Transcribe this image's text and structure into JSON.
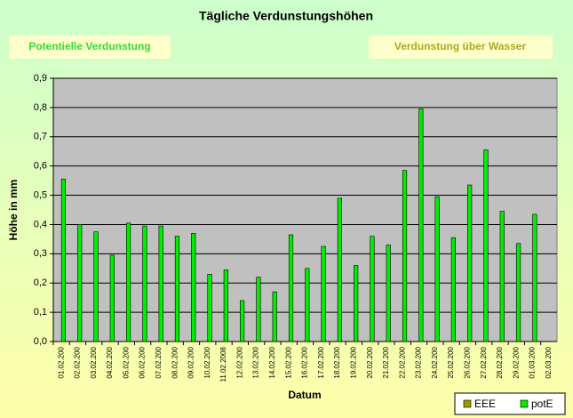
{
  "chart_data": {
    "type": "bar",
    "title": "Tägliche Verdunstungshöhen",
    "annotations": [
      "Potentielle Verdunstung",
      "Verdunstung über Wasser"
    ],
    "ylabel": "Höhe in mm",
    "xlabel": "Datum",
    "categories": [
      "01.02.200",
      "02.02.200",
      "03.02.200",
      "04.02.200",
      "05.02.200",
      "06.02.200",
      "07.02.200",
      "08.02.200",
      "09.02.200",
      "10.02.200",
      "11.02.2008",
      "12.02.200",
      "13.02.200",
      "14.02.200",
      "15.02.200",
      "16.02.200",
      "17.02.200",
      "18.02.200",
      "19.02.200",
      "20.02.200",
      "21.02.200",
      "22.02.200",
      "23.02.200",
      "24.02.200",
      "25.02.200",
      "26.02.200",
      "27.02.200",
      "28.02.200",
      "29.02.200",
      "01.03.200",
      "02.03.200"
    ],
    "series": [
      {
        "name": "EEE",
        "color": "#999900",
        "values": [
          null,
          null,
          null,
          null,
          null,
          null,
          null,
          null,
          null,
          null,
          null,
          null,
          null,
          null,
          null,
          null,
          null,
          null,
          null,
          null,
          null,
          null,
          null,
          null,
          null,
          null,
          null,
          null,
          null,
          null,
          null
        ]
      },
      {
        "name": "potE",
        "color": "#00ee00",
        "values": [
          0.555,
          0.4,
          0.375,
          0.295,
          0.405,
          0.395,
          0.395,
          0.36,
          0.37,
          0.23,
          0.245,
          0.14,
          0.22,
          0.17,
          0.365,
          0.25,
          0.325,
          0.49,
          0.26,
          0.36,
          0.33,
          0.585,
          0.795,
          0.495,
          0.355,
          0.535,
          0.655,
          0.445,
          0.335,
          0.435,
          null
        ]
      }
    ],
    "ylim": [
      0,
      0.9
    ],
    "yticks": [
      {
        "value": 0,
        "label": "0,0"
      },
      {
        "value": 0.1,
        "label": "0,1"
      },
      {
        "value": 0.2,
        "label": "0,2"
      },
      {
        "value": 0.3,
        "label": "0,3"
      },
      {
        "value": 0.4,
        "label": "0,4"
      },
      {
        "value": 0.5,
        "label": "0,5"
      },
      {
        "value": 0.6,
        "label": "0,6"
      },
      {
        "value": 0.7,
        "label": "0,7"
      },
      {
        "value": 0.8,
        "label": "0,8"
      },
      {
        "value": 0.9,
        "label": "0,9"
      }
    ],
    "grid": true,
    "legend": "bottom-right"
  }
}
